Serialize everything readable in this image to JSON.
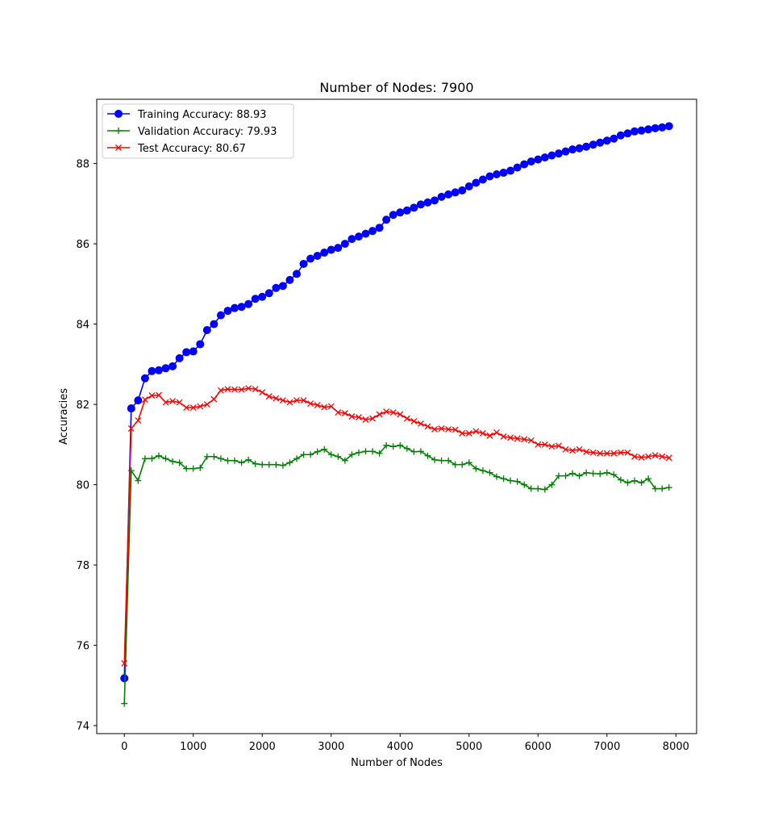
{
  "chart_data": {
    "type": "line",
    "title": "Number of Nodes: 7900",
    "xlabel": "Number of Nodes",
    "ylabel": "Accuracies",
    "xlim": [
      -400,
      8300
    ],
    "ylim": [
      73.8,
      89.6
    ],
    "xticks": [
      0,
      1000,
      2000,
      3000,
      4000,
      5000,
      6000,
      7000,
      8000
    ],
    "yticks": [
      74,
      76,
      78,
      80,
      82,
      84,
      86,
      88
    ],
    "grid": false,
    "legend_position": "top-left",
    "x": [
      0,
      100,
      200,
      300,
      400,
      500,
      600,
      700,
      800,
      900,
      1000,
      1100,
      1200,
      1300,
      1400,
      1500,
      1600,
      1700,
      1800,
      1900,
      2000,
      2100,
      2200,
      2300,
      2400,
      2500,
      2600,
      2700,
      2800,
      2900,
      3000,
      3100,
      3200,
      3300,
      3400,
      3500,
      3600,
      3700,
      3800,
      3900,
      4000,
      4100,
      4200,
      4300,
      4400,
      4500,
      4600,
      4700,
      4800,
      4900,
      5000,
      5100,
      5200,
      5300,
      5400,
      5500,
      5600,
      5700,
      5800,
      5900,
      6000,
      6100,
      6200,
      6300,
      6400,
      6500,
      6600,
      6700,
      6800,
      6900,
      7000,
      7100,
      7200,
      7300,
      7400,
      7500,
      7600,
      7700,
      7800,
      7900
    ],
    "series": [
      {
        "name": "Training Accuracy: 88.93",
        "color": "#0000ff",
        "marker": "o",
        "values": [
          75.18,
          81.9,
          82.1,
          82.65,
          82.83,
          82.85,
          82.9,
          82.95,
          83.15,
          83.3,
          83.32,
          83.5,
          83.85,
          84.0,
          84.22,
          84.33,
          84.4,
          84.43,
          84.5,
          84.63,
          84.68,
          84.77,
          84.9,
          84.95,
          85.1,
          85.25,
          85.5,
          85.63,
          85.7,
          85.78,
          85.85,
          85.9,
          86.0,
          86.12,
          86.18,
          86.25,
          86.32,
          86.4,
          86.6,
          86.72,
          86.78,
          86.83,
          86.9,
          86.98,
          87.03,
          87.08,
          87.17,
          87.23,
          87.28,
          87.33,
          87.43,
          87.52,
          87.6,
          87.68,
          87.73,
          87.77,
          87.82,
          87.9,
          87.98,
          88.05,
          88.1,
          88.15,
          88.2,
          88.25,
          88.3,
          88.35,
          88.38,
          88.42,
          88.47,
          88.52,
          88.57,
          88.62,
          88.7,
          88.75,
          88.8,
          88.82,
          88.85,
          88.88,
          88.9,
          88.93
        ]
      },
      {
        "name": "Validation Accuracy: 79.93",
        "color": "#008000",
        "marker": "+",
        "values": [
          74.55,
          80.35,
          80.1,
          80.65,
          80.65,
          80.72,
          80.65,
          80.58,
          80.55,
          80.4,
          80.4,
          80.42,
          80.7,
          80.7,
          80.65,
          80.6,
          80.6,
          80.55,
          80.62,
          80.52,
          80.5,
          80.5,
          80.5,
          80.48,
          80.55,
          80.65,
          80.75,
          80.75,
          80.82,
          80.88,
          80.75,
          80.7,
          80.6,
          80.75,
          80.8,
          80.83,
          80.83,
          80.78,
          80.98,
          80.95,
          80.98,
          80.9,
          80.82,
          80.83,
          80.72,
          80.62,
          80.6,
          80.6,
          80.5,
          80.5,
          80.55,
          80.4,
          80.35,
          80.3,
          80.2,
          80.15,
          80.1,
          80.08,
          80.0,
          79.9,
          79.9,
          79.88,
          80.0,
          80.22,
          80.22,
          80.28,
          80.22,
          80.3,
          80.28,
          80.27,
          80.3,
          80.25,
          80.12,
          80.05,
          80.1,
          80.05,
          80.15,
          79.9,
          79.9,
          79.93
        ]
      },
      {
        "name": "Test Accuracy: 80.67",
        "color": "#ff0000",
        "marker": "x",
        "values": [
          75.55,
          81.4,
          81.6,
          82.12,
          82.22,
          82.23,
          82.05,
          82.08,
          82.05,
          81.92,
          81.92,
          81.95,
          82.0,
          82.13,
          82.35,
          82.38,
          82.37,
          82.37,
          82.4,
          82.38,
          82.3,
          82.2,
          82.15,
          82.1,
          82.05,
          82.1,
          82.1,
          82.02,
          81.98,
          81.93,
          81.95,
          81.8,
          81.78,
          81.7,
          81.68,
          81.62,
          81.65,
          81.75,
          81.82,
          81.8,
          81.75,
          81.65,
          81.58,
          81.52,
          81.45,
          81.38,
          81.4,
          81.38,
          81.37,
          81.28,
          81.28,
          81.33,
          81.28,
          81.22,
          81.3,
          81.2,
          81.17,
          81.15,
          81.13,
          81.1,
          81.0,
          81.0,
          80.95,
          80.97,
          80.88,
          80.85,
          80.88,
          80.82,
          80.8,
          80.78,
          80.78,
          80.78,
          80.8,
          80.8,
          80.7,
          80.68,
          80.7,
          80.73,
          80.7,
          80.67
        ]
      }
    ]
  }
}
